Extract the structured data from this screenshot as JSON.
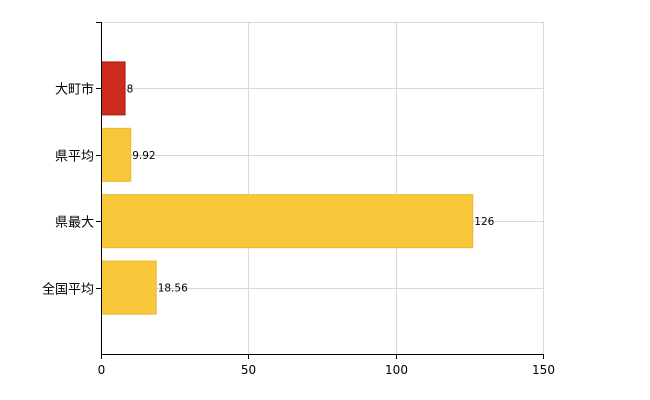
{
  "colors": {
    "highlight": "#cc2a1b",
    "highlight_stroke": "#a81e12",
    "default": "#f9c83a",
    "default_stroke": "#e9b62a"
  },
  "chart_data": {
    "type": "bar",
    "orientation": "horizontal",
    "title": "",
    "xlabel": "",
    "ylabel": "",
    "categories": [
      "大町市",
      "県平均",
      "県最大",
      "全国平均"
    ],
    "values": [
      8,
      9.92,
      126,
      18.56
    ],
    "value_labels": [
      "8",
      "9.92",
      "126",
      "18.56"
    ],
    "highlight_index": 0,
    "xlim": [
      0,
      150
    ],
    "x_ticks": [
      0,
      50,
      100,
      150
    ],
    "x_tick_labels": [
      "0",
      "50",
      "100",
      "150"
    ],
    "grid": true,
    "legend": "none"
  }
}
